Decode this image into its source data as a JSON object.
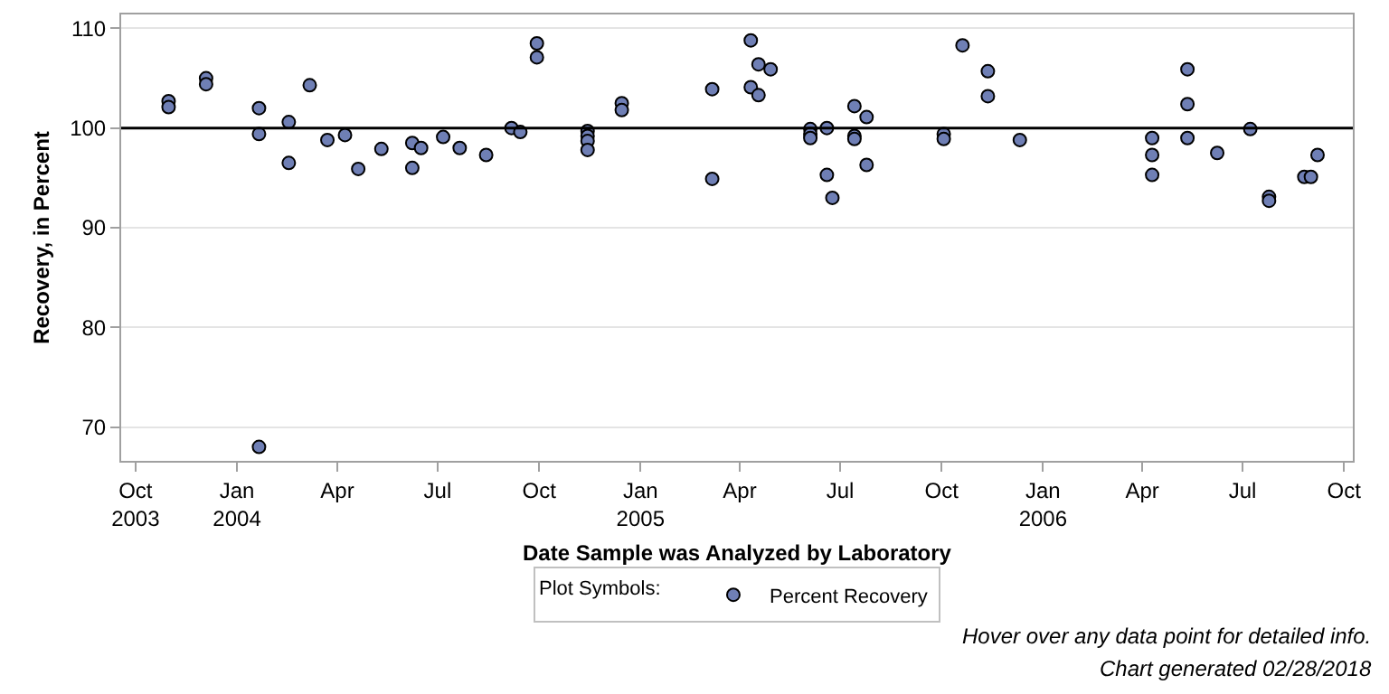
{
  "chart_data": {
    "type": "scatter",
    "xlabel": "Date Sample was Analyzed by Laboratory",
    "ylabel": "Recovery, in Percent",
    "legend_title": "Plot Symbols:",
    "annotations": [
      "Hover over any data point for detailed info.",
      "Chart generated 02/28/2018"
    ],
    "series": [
      {
        "name": "Percent Recovery",
        "color": "#6f7fb5",
        "x": [
          "2003-10-31",
          "2003-10-31",
          "2003-12-04",
          "2003-12-04",
          "2004-01-21",
          "2004-01-21",
          "2004-01-21",
          "2004-02-17",
          "2004-02-17",
          "2004-03-07",
          "2004-03-23",
          "2004-04-08",
          "2004-04-20",
          "2004-05-11",
          "2004-06-08",
          "2004-06-08",
          "2004-06-16",
          "2004-07-06",
          "2004-07-21",
          "2004-08-14",
          "2004-09-06",
          "2004-09-14",
          "2004-09-29",
          "2004-09-29",
          "2004-11-14",
          "2004-11-14",
          "2004-11-14",
          "2004-11-14",
          "2004-12-15",
          "2004-12-15",
          "2005-03-07",
          "2005-03-07",
          "2005-04-11",
          "2005-04-11",
          "2005-04-18",
          "2005-04-18",
          "2005-04-29",
          "2005-06-04",
          "2005-06-04",
          "2005-06-04",
          "2005-06-19",
          "2005-06-19",
          "2005-06-24",
          "2005-07-14",
          "2005-07-14",
          "2005-07-14",
          "2005-07-25",
          "2005-07-25",
          "2005-10-03",
          "2005-10-03",
          "2005-10-20",
          "2005-11-12",
          "2005-11-12",
          "2005-12-11",
          "2006-04-10",
          "2006-04-10",
          "2006-04-10",
          "2006-05-12",
          "2006-05-12",
          "2006-05-12",
          "2006-06-08",
          "2006-07-08",
          "2006-07-25",
          "2006-07-25",
          "2006-08-26",
          "2006-09-01",
          "2006-09-07"
        ],
        "values": [
          102.7,
          102.1,
          105.0,
          104.4,
          102.0,
          99.4,
          68.0,
          100.6,
          96.5,
          104.3,
          98.8,
          99.3,
          95.9,
          97.9,
          98.5,
          96.0,
          98.0,
          99.1,
          98.0,
          97.3,
          100.0,
          99.6,
          108.5,
          107.1,
          99.7,
          99.2,
          98.7,
          97.8,
          102.5,
          101.8,
          103.9,
          94.9,
          108.8,
          104.1,
          103.3,
          106.4,
          105.9,
          99.9,
          99.4,
          99.0,
          100.0,
          95.3,
          93.0,
          102.2,
          99.2,
          98.9,
          101.1,
          96.3,
          99.4,
          98.9,
          108.3,
          105.7,
          103.2,
          98.8,
          99.0,
          97.3,
          95.3,
          105.9,
          102.4,
          99.0,
          97.5,
          99.9,
          93.1,
          92.7,
          95.1,
          95.1,
          97.3
        ]
      }
    ],
    "xlim": [
      "2003-09-18",
      "2006-10-09"
    ],
    "xticks": [
      {
        "value": "2003-10-01",
        "label": "Oct\n2003"
      },
      {
        "value": "2004-01-01",
        "label": "Jan\n2004"
      },
      {
        "value": "2004-04-01",
        "label": "Apr"
      },
      {
        "value": "2004-07-01",
        "label": "Jul"
      },
      {
        "value": "2004-10-01",
        "label": "Oct"
      },
      {
        "value": "2005-01-01",
        "label": "Jan\n2005"
      },
      {
        "value": "2005-04-01",
        "label": "Apr"
      },
      {
        "value": "2005-07-01",
        "label": "Jul"
      },
      {
        "value": "2005-10-01",
        "label": "Oct"
      },
      {
        "value": "2006-01-01",
        "label": "Jan\n2006"
      },
      {
        "value": "2006-04-01",
        "label": "Apr"
      },
      {
        "value": "2006-07-01",
        "label": "Jul"
      },
      {
        "value": "2006-10-01",
        "label": "Oct"
      }
    ],
    "ylim": [
      66.6,
      111.4
    ],
    "yticks": [
      70,
      80,
      90,
      100,
      110
    ],
    "ref_lines": [
      {
        "axis": "y",
        "value": 100,
        "color": "#000000"
      }
    ],
    "grid": "y",
    "legend": "bottom",
    "marker": "circle"
  }
}
